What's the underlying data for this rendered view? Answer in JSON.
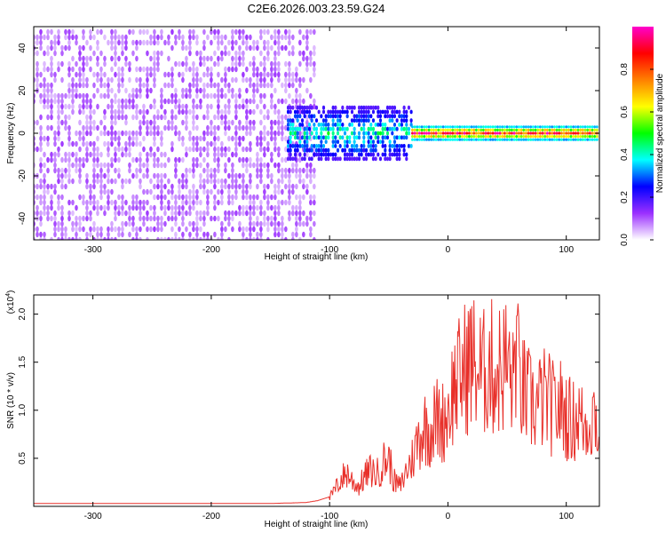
{
  "title": "C2E6.2026.003.23.59.G24",
  "chart_data": [
    {
      "type": "heatmap",
      "title": "C2E6.2026.003.23.59.G24",
      "xlabel": "Height of straight line (km)",
      "ylabel": "Frequency (Hz)",
      "xlim": [
        -350,
        128
      ],
      "ylim": [
        -50,
        50
      ],
      "xticks": [
        -300,
        -200,
        -100,
        0,
        100
      ],
      "xtick_labels": [
        "-300",
        "-200",
        "-100",
        "0",
        "100"
      ],
      "yticks": [
        -40,
        -20,
        0,
        20,
        40
      ],
      "ytick_labels": [
        "-40",
        "-20",
        "0",
        "20",
        "40"
      ],
      "colorbar": {
        "label": "Normalized spectral amplitude",
        "range": [
          0,
          1
        ],
        "ticks": [
          0.0,
          0.2,
          0.4,
          0.6,
          0.8
        ],
        "tick_labels": [
          "0.0",
          "0.2",
          "0.4",
          "0.6",
          "0.8"
        ],
        "colors": [
          "#ffffff",
          "#9b30ff",
          "#0000ff",
          "#00ffff",
          "#00ff00",
          "#ffff00",
          "#ff8000",
          "#ff0000",
          "#ff00cc"
        ]
      },
      "regions": [
        {
          "name": "noise",
          "x_range": [
            -350,
            -112
          ],
          "freq_range": [
            -50,
            50
          ],
          "amplitude_range": [
            0.02,
            0.12
          ]
        },
        {
          "name": "transition",
          "x_range": [
            -135,
            -30
          ],
          "freq_range": [
            -12,
            12
          ],
          "amplitude_range": [
            0.15,
            0.5
          ]
        },
        {
          "name": "signal",
          "x_range": [
            -30,
            128
          ],
          "freq_center": 0,
          "freq_halfwidth": 3,
          "amplitude_range": [
            0.4,
            1.0
          ]
        }
      ]
    },
    {
      "type": "line",
      "xlabel": "Height of straight line (km)",
      "ylabel": "SNR (10 * v/v)",
      "y_multiplier": "(x10",
      "y_multiplier_exp": "4",
      "xlim": [
        -350,
        128
      ],
      "ylim": [
        0,
        2.2
      ],
      "xticks": [
        -300,
        -200,
        -100,
        0,
        100
      ],
      "xtick_labels": [
        "-300",
        "-200",
        "-100",
        "0",
        "100"
      ],
      "yticks": [
        0.5,
        1.0,
        1.5,
        2.0
      ],
      "ytick_labels": [
        "0.5",
        "1.0",
        "1.5",
        "2.0"
      ],
      "series": [
        {
          "name": "SNR",
          "color": "#e8302a",
          "x": [
            -350,
            -300,
            -250,
            -200,
            -150,
            -120,
            -110,
            -100,
            -95,
            -90,
            -85,
            -80,
            -75,
            -70,
            -65,
            -60,
            -55,
            -50,
            -45,
            -40,
            -35,
            -30,
            -25,
            -20,
            -15,
            -10,
            -5,
            0,
            5,
            10,
            15,
            20,
            25,
            30,
            35,
            40,
            45,
            50,
            55,
            58,
            60,
            65,
            70,
            75,
            80,
            85,
            90,
            95,
            100,
            105,
            110,
            115,
            120,
            125,
            128
          ],
          "y": [
            0.03,
            0.03,
            0.03,
            0.03,
            0.03,
            0.04,
            0.06,
            0.1,
            0.22,
            0.35,
            0.42,
            0.3,
            0.25,
            0.38,
            0.45,
            0.4,
            0.55,
            0.6,
            0.3,
            0.25,
            0.45,
            0.6,
            0.85,
            1.0,
            0.95,
            1.1,
            1.05,
            1.2,
            1.5,
            1.6,
            1.75,
            1.85,
            1.7,
            1.65,
            1.8,
            1.65,
            1.75,
            1.8,
            1.5,
            2.2,
            1.55,
            1.4,
            1.3,
            1.25,
            1.35,
            1.3,
            1.2,
            1.25,
            1.15,
            1.05,
            1.15,
            1.0,
            1.1,
            1.2,
            0.6
          ]
        }
      ]
    }
  ]
}
